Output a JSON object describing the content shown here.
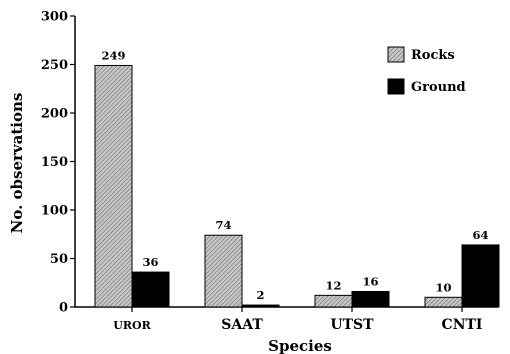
{
  "chart_data": {
    "type": "bar",
    "xlabel": "Species",
    "ylabel": "No. observations",
    "ylim": [
      0,
      300
    ],
    "yticks": [
      0,
      50,
      100,
      150,
      200,
      250,
      300
    ],
    "categories": [
      "UROR",
      "SAAT",
      "UTST",
      "CNTI"
    ],
    "series": [
      {
        "name": "Rocks",
        "values": [
          249,
          74,
          12,
          10
        ],
        "pattern": "hatched",
        "color": "#9a9a9a"
      },
      {
        "name": "Ground",
        "values": [
          36,
          2,
          16,
          64
        ],
        "pattern": "solid",
        "color": "#000000"
      }
    ],
    "grid": false,
    "legend_position": "top-right"
  }
}
